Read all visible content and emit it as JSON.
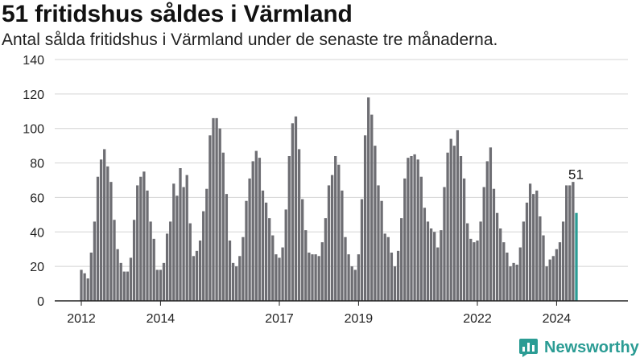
{
  "title": "51 fritidshus såldes i Värmland",
  "subtitle": "Antal sålda fritidshus i Värmland under de senaste tre månaderna.",
  "brand": "Newsworthy",
  "colors": {
    "bar": "#6e6e73",
    "highlight": "#2b9c94",
    "grid": "#d4d4d4",
    "axis": "#222222"
  },
  "chart_data": {
    "type": "bar",
    "title": "51 fritidshus såldes i Värmland",
    "subtitle": "Antal sålda fritidshus i Värmland under de senaste tre månaderna.",
    "xlabel": "",
    "ylabel": "",
    "ylim": [
      0,
      140
    ],
    "yticks": [
      0,
      20,
      40,
      60,
      80,
      100,
      120,
      140
    ],
    "xtick_labels": [
      {
        "label": "2012",
        "index": 0
      },
      {
        "label": "2014",
        "index": 24
      },
      {
        "label": "2017",
        "index": 60
      },
      {
        "label": "2019",
        "index": 84
      },
      {
        "label": "2022",
        "index": 120
      },
      {
        "label": "2024",
        "index": 144
      }
    ],
    "grid": true,
    "highlight_label": "51",
    "values": [
      18,
      16,
      13,
      28,
      46,
      72,
      82,
      88,
      78,
      69,
      47,
      30,
      22,
      17,
      17,
      25,
      47,
      67,
      72,
      75,
      64,
      46,
      36,
      18,
      18,
      22,
      39,
      46,
      68,
      61,
      77,
      66,
      73,
      45,
      26,
      29,
      35,
      52,
      65,
      96,
      106,
      106,
      100,
      86,
      62,
      35,
      22,
      20,
      26,
      37,
      58,
      71,
      81,
      87,
      83,
      64,
      57,
      48,
      38,
      27,
      25,
      31,
      53,
      84,
      103,
      107,
      88,
      59,
      41,
      28,
      27,
      27,
      26,
      34,
      48,
      67,
      73,
      84,
      79,
      64,
      37,
      27,
      20,
      18,
      27,
      59,
      96,
      118,
      108,
      90,
      67,
      58,
      39,
      37,
      28,
      20,
      29,
      48,
      71,
      83,
      84,
      85,
      82,
      72,
      54,
      46,
      42,
      40,
      31,
      41,
      66,
      86,
      94,
      90,
      99,
      84,
      71,
      45,
      36,
      34,
      35,
      46,
      66,
      81,
      89,
      65,
      51,
      42,
      34,
      28,
      20,
      22,
      21,
      31,
      46,
      57,
      68,
      62,
      64,
      49,
      38,
      20,
      24,
      26,
      30,
      34,
      46,
      67,
      67,
      69,
      51
    ]
  }
}
